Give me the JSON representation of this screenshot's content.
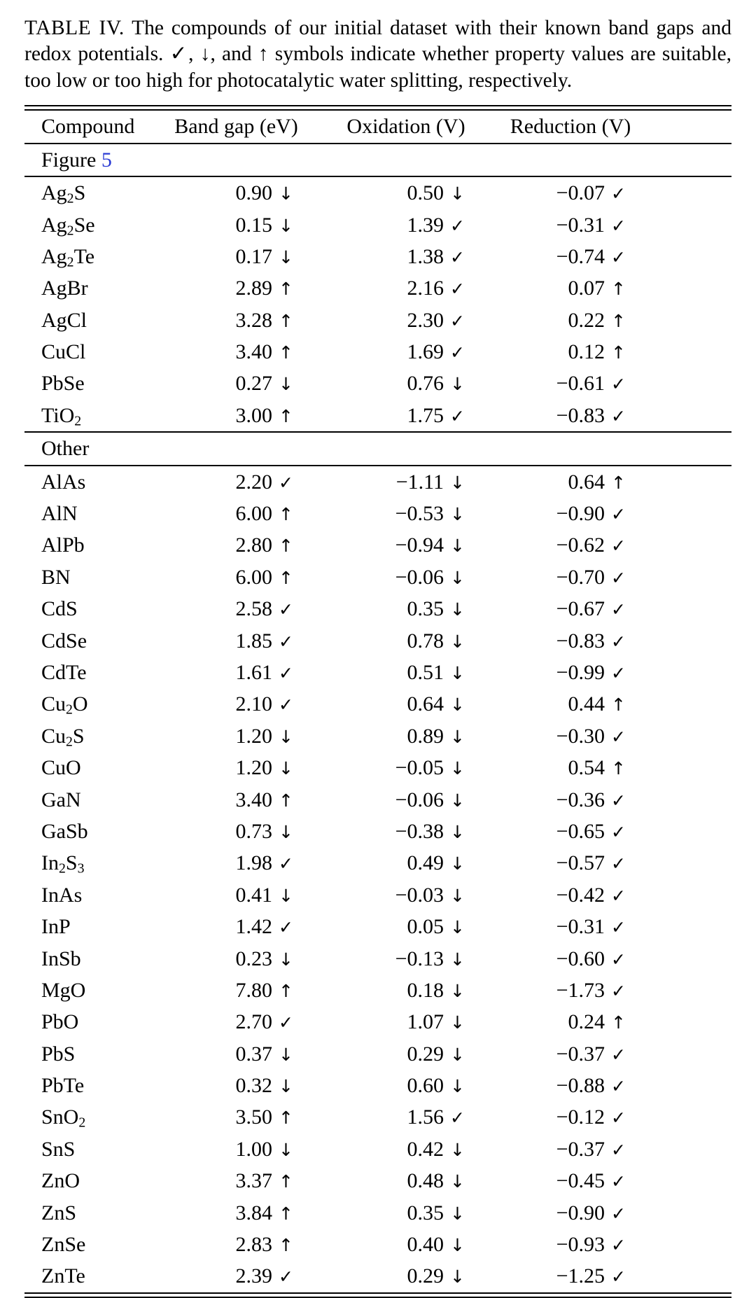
{
  "colors": {
    "link_blue": "#2b3bd4",
    "text": "#000000",
    "background": "#ffffff"
  },
  "caption": {
    "label": "TABLE IV.",
    "text": "The compounds of our initial dataset with their known band gaps and redox potentials.  ✓, ↓, and ↑ symbols indicate whether property values are suitable, too low or too high for photocatalytic water splitting, respectively."
  },
  "table": {
    "columns": [
      "Compound",
      "Band gap (eV)",
      "Oxidation (V)",
      "Reduction (V)"
    ],
    "symbol_glyphs": {
      "check": "✓",
      "down": "↓",
      "up": "↑"
    },
    "sections": [
      {
        "title": "Figure",
        "title_link": "5",
        "rows": [
          [
            "Ag2S",
            "0.90",
            "down",
            "0.50",
            "down",
            "−0.07",
            "check"
          ],
          [
            "Ag2Se",
            "0.15",
            "down",
            "1.39",
            "check",
            "−0.31",
            "check"
          ],
          [
            "Ag2Te",
            "0.17",
            "down",
            "1.38",
            "check",
            "−0.74",
            "check"
          ],
          [
            "AgBr",
            "2.89",
            "up",
            "2.16",
            "check",
            "0.07",
            "up"
          ],
          [
            "AgCl",
            "3.28",
            "up",
            "2.30",
            "check",
            "0.22",
            "up"
          ],
          [
            "CuCl",
            "3.40",
            "up",
            "1.69",
            "check",
            "0.12",
            "up"
          ],
          [
            "PbSe",
            "0.27",
            "down",
            "0.76",
            "down",
            "−0.61",
            "check"
          ],
          [
            "TiO2",
            "3.00",
            "up",
            "1.75",
            "check",
            "−0.83",
            "check"
          ]
        ]
      },
      {
        "title": "Other",
        "title_link": "",
        "rows": [
          [
            "AlAs",
            "2.20",
            "check",
            "−1.11",
            "down",
            "0.64",
            "up"
          ],
          [
            "AlN",
            "6.00",
            "up",
            "−0.53",
            "down",
            "−0.90",
            "check"
          ],
          [
            "AlPb",
            "2.80",
            "up",
            "−0.94",
            "down",
            "−0.62",
            "check"
          ],
          [
            "BN",
            "6.00",
            "up",
            "−0.06",
            "down",
            "−0.70",
            "check"
          ],
          [
            "CdS",
            "2.58",
            "check",
            "0.35",
            "down",
            "−0.67",
            "check"
          ],
          [
            "CdSe",
            "1.85",
            "check",
            "0.78",
            "down",
            "−0.83",
            "check"
          ],
          [
            "CdTe",
            "1.61",
            "check",
            "0.51",
            "down",
            "−0.99",
            "check"
          ],
          [
            "Cu2O",
            "2.10",
            "check",
            "0.64",
            "down",
            "0.44",
            "up"
          ],
          [
            "Cu2S",
            "1.20",
            "down",
            "0.89",
            "down",
            "−0.30",
            "check"
          ],
          [
            "CuO",
            "1.20",
            "down",
            "−0.05",
            "down",
            "0.54",
            "up"
          ],
          [
            "GaN",
            "3.40",
            "up",
            "−0.06",
            "down",
            "−0.36",
            "check"
          ],
          [
            "GaSb",
            "0.73",
            "down",
            "−0.38",
            "down",
            "−0.65",
            "check"
          ],
          [
            "In2S3",
            "1.98",
            "check",
            "0.49",
            "down",
            "−0.57",
            "check"
          ],
          [
            "InAs",
            "0.41",
            "down",
            "−0.03",
            "down",
            "−0.42",
            "check"
          ],
          [
            "InP",
            "1.42",
            "check",
            "0.05",
            "down",
            "−0.31",
            "check"
          ],
          [
            "InSb",
            "0.23",
            "down",
            "−0.13",
            "down",
            "−0.60",
            "check"
          ],
          [
            "MgO",
            "7.80",
            "up",
            "0.18",
            "down",
            "−1.73",
            "check"
          ],
          [
            "PbO",
            "2.70",
            "check",
            "1.07",
            "down",
            "0.24",
            "up"
          ],
          [
            "PbS",
            "0.37",
            "down",
            "0.29",
            "down",
            "−0.37",
            "check"
          ],
          [
            "PbTe",
            "0.32",
            "down",
            "0.60",
            "down",
            "−0.88",
            "check"
          ],
          [
            "SnO2",
            "3.50",
            "up",
            "1.56",
            "check",
            "−0.12",
            "check"
          ],
          [
            "SnS",
            "1.00",
            "down",
            "0.42",
            "down",
            "−0.37",
            "check"
          ],
          [
            "ZnO",
            "3.37",
            "up",
            "0.48",
            "down",
            "−0.45",
            "check"
          ],
          [
            "ZnS",
            "3.84",
            "up",
            "0.35",
            "down",
            "−0.90",
            "check"
          ],
          [
            "ZnSe",
            "2.83",
            "up",
            "0.40",
            "down",
            "−0.93",
            "check"
          ],
          [
            "ZnTe",
            "2.39",
            "check",
            "0.29",
            "down",
            "−1.25",
            "check"
          ]
        ]
      }
    ]
  }
}
